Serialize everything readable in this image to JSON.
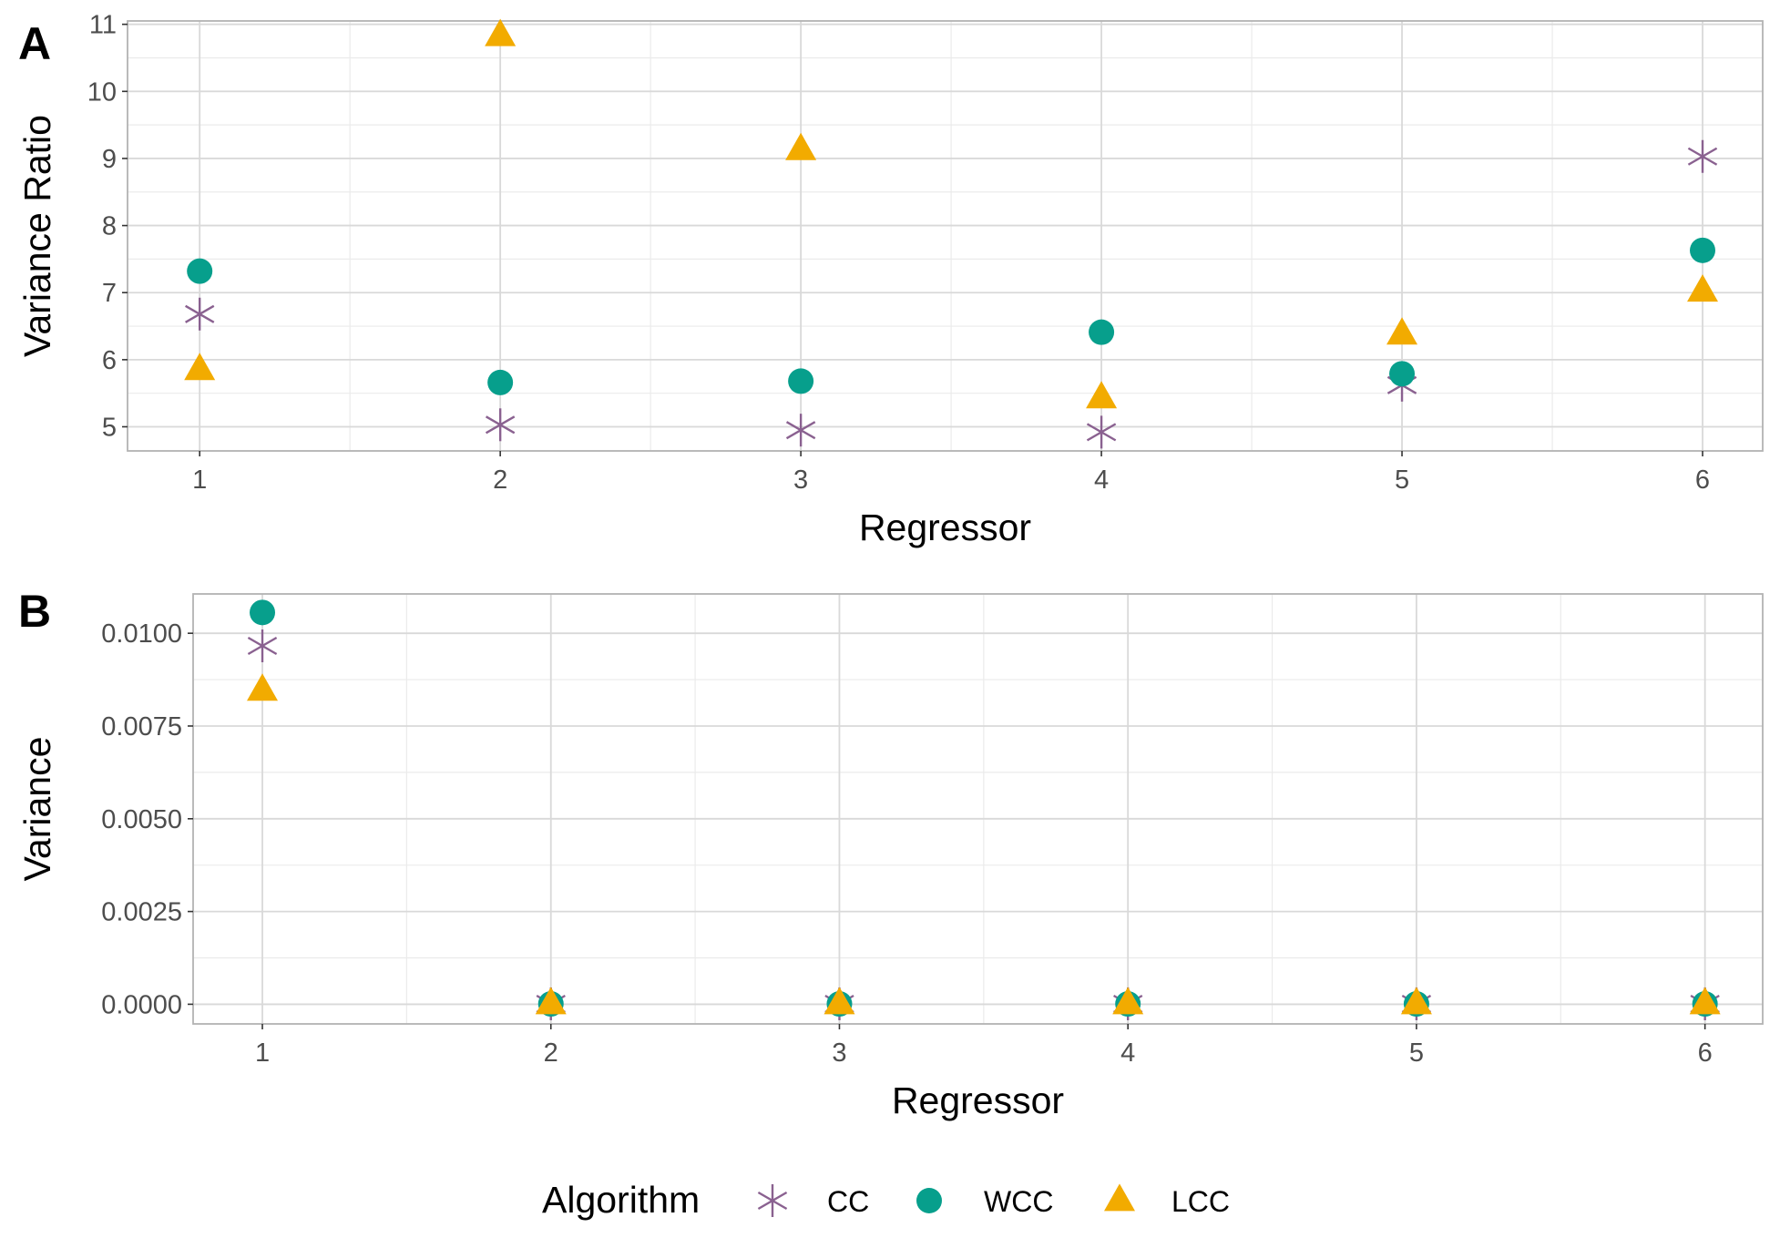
{
  "chart_data": [
    {
      "type": "scatter",
      "panel_tag": "A",
      "xlabel": "Regressor",
      "ylabel": "Variance Ratio",
      "x": [
        1,
        2,
        3,
        4,
        5,
        6
      ],
      "x_ticks": [
        "1",
        "2",
        "3",
        "4",
        "5",
        "6"
      ],
      "y_ticks": [
        "5",
        "6",
        "7",
        "8",
        "9",
        "10",
        "11"
      ],
      "xlim": [
        0.76,
        6.2
      ],
      "ylim": [
        4.64,
        11.05
      ],
      "grid": true,
      "series": [
        {
          "name": "CC",
          "values": [
            6.68,
            5.03,
            4.95,
            4.92,
            5.62,
            9.03
          ]
        },
        {
          "name": "WCC",
          "values": [
            7.32,
            5.66,
            5.68,
            6.41,
            5.79,
            7.63
          ]
        },
        {
          "name": "LCC",
          "values": [
            5.85,
            10.83,
            9.13,
            5.43,
            6.38,
            7.02
          ]
        }
      ]
    },
    {
      "type": "scatter",
      "panel_tag": "B",
      "xlabel": "Regressor",
      "ylabel": "Variance",
      "x": [
        1,
        2,
        3,
        4,
        5,
        6
      ],
      "x_ticks": [
        "1",
        "2",
        "3",
        "4",
        "5",
        "6"
      ],
      "y_ticks": [
        "0.0000",
        "0.0025",
        "0.0050",
        "0.0075",
        "0.0100"
      ],
      "xlim": [
        0.76,
        6.2
      ],
      "ylim": [
        -0.00053,
        0.01106
      ],
      "grid": true,
      "series": [
        {
          "name": "CC",
          "values": [
            0.00966,
            1e-05,
            1e-05,
            1e-05,
            1e-05,
            1e-05
          ]
        },
        {
          "name": "WCC",
          "values": [
            0.01056,
            1e-05,
            1e-05,
            1e-05,
            1e-05,
            1e-05
          ]
        },
        {
          "name": "LCC",
          "values": [
            0.00846,
            1e-05,
            1e-05,
            1e-05,
            1e-05,
            1e-05
          ]
        }
      ]
    }
  ],
  "legend": {
    "title": "Algorithm",
    "placement": "bottom",
    "items": [
      {
        "label": "CC",
        "shape": "asterisk",
        "color": "#8a6190"
      },
      {
        "label": "WCC",
        "shape": "circle",
        "color": "#079f8c"
      },
      {
        "label": "LCC",
        "shape": "triangle",
        "color": "#f2ab00"
      }
    ]
  },
  "colors": {
    "CC": "#8a6190",
    "WCC": "#079f8c",
    "LCC": "#f2ab00"
  }
}
